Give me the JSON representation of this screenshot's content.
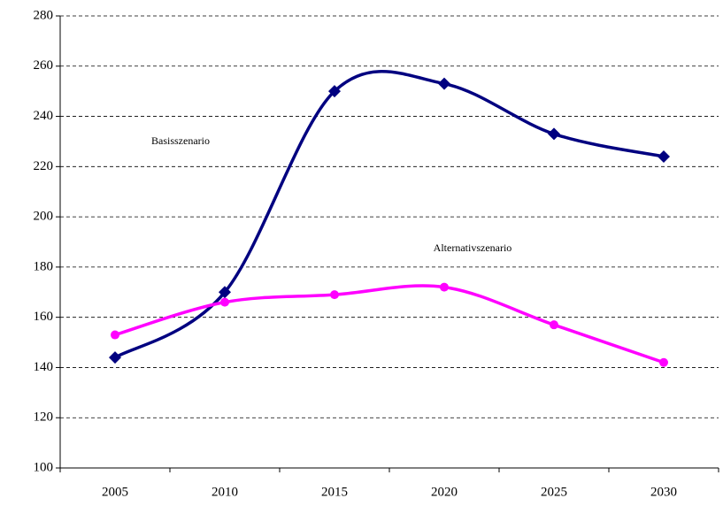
{
  "chart_data": {
    "type": "line",
    "categories": [
      "2005",
      "2010",
      "2015",
      "2020",
      "2025",
      "2030"
    ],
    "series": [
      {
        "name": "Basisszenario",
        "color": "#000080",
        "marker": "diamond",
        "values": [
          144,
          170,
          250,
          253,
          233,
          224
        ]
      },
      {
        "name": "Alternativszenario",
        "color": "#ff00ff",
        "marker": "circle",
        "values": [
          153,
          166,
          169,
          172,
          157,
          142
        ]
      }
    ],
    "ylim": [
      100,
      280
    ],
    "yticks": [
      100,
      120,
      140,
      160,
      180,
      200,
      220,
      240,
      260,
      280
    ],
    "grid": true,
    "smooth": true
  }
}
